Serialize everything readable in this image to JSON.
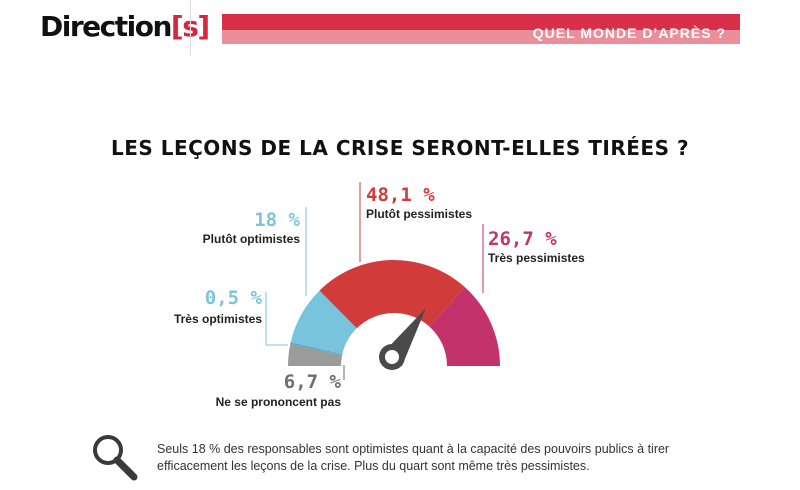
{
  "header": {
    "logo_text": "Direction",
    "logo_suffix": "[s]",
    "section_title": "QUEL MONDE D’APRÈS ?"
  },
  "chart_data": {
    "type": "pie",
    "variant": "semicircle-gauge",
    "title": "LES LEÇONS DE LA CRISE SERONT-ELLES TIRÉES ?",
    "slices": [
      {
        "label": "Ne se prononcent pas",
        "value": 6.7,
        "value_text": "6,7 %",
        "color": "#9b9b9b"
      },
      {
        "label": "Très optimistes",
        "value": 0.5,
        "value_text": "0,5 %",
        "color": "#4aa8cb"
      },
      {
        "label": "Plutôt optimistes",
        "value": 18,
        "value_text": "18 %",
        "color": "#78c4dc"
      },
      {
        "label": "Plutôt pessimistes",
        "value": 48.1,
        "value_text": "48,1 %",
        "color": "#d13c3a"
      },
      {
        "label": "Très pessimistes",
        "value": 26.7,
        "value_text": "26,7 %",
        "color": "#c3326b"
      }
    ],
    "label_colors": {
      "Ne se prononcent pas": "#6e6e6e",
      "Très optimistes": "#7bc5dd",
      "Plutôt optimistes": "#7bc5dd",
      "Plutôt pessimistes": "#d13c3a",
      "Très pessimistes": "#c3326b"
    },
    "needle_color": "#4a4a4a"
  },
  "footnote": {
    "icon": "magnifier-icon",
    "text": "Seuls 18 % des responsables sont optimistes quant à la capacité des pouvoirs publics à tirer efficacement les leçons de la crise. Plus du quart sont même très pessimistes."
  }
}
